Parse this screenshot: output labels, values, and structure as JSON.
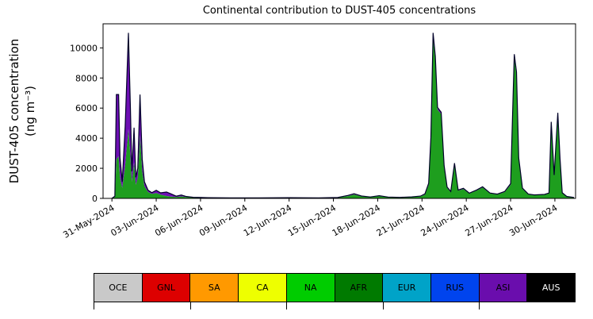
{
  "chart_data": {
    "type": "area",
    "stacked": true,
    "title": "Continental contribution to DUST-405 concentrations",
    "ylabel": [
      "DUST-405 concentration",
      "(ng m⁻³)"
    ],
    "xlim_days": [
      -0.6,
      31.4
    ],
    "ylim": [
      0,
      11600
    ],
    "y_ticks": [
      0,
      2000,
      4000,
      6000,
      8000,
      10000
    ],
    "x_ticks": [
      {
        "day": 0,
        "label": "31-May-2024"
      },
      {
        "day": 3,
        "label": "03-Jun-2024"
      },
      {
        "day": 6,
        "label": "06-Jun-2024"
      },
      {
        "day": 9,
        "label": "09-Jun-2024"
      },
      {
        "day": 12,
        "label": "12-Jun-2024"
      },
      {
        "day": 15,
        "label": "15-Jun-2024"
      },
      {
        "day": 18,
        "label": "18-Jun-2024"
      },
      {
        "day": 21,
        "label": "21-Jun-2024"
      },
      {
        "day": 24,
        "label": "24-Jun-2024"
      },
      {
        "day": 27,
        "label": "27-Jun-2024"
      },
      {
        "day": 30,
        "label": "30-Jun-2024"
      }
    ],
    "series": [
      {
        "name": "NA",
        "color": "#1e9e1e"
      },
      {
        "name": "ASI",
        "color": "#6e0fb4"
      }
    ],
    "outline_color": "#000028",
    "points": [
      [
        0,
        5,
        0
      ],
      [
        0.2,
        100,
        50
      ],
      [
        0.3,
        2600,
        4300
      ],
      [
        0.45,
        2800,
        4100
      ],
      [
        0.55,
        1400,
        1300
      ],
      [
        0.7,
        700,
        400
      ],
      [
        0.9,
        2200,
        2600
      ],
      [
        1.12,
        4600,
        6400
      ],
      [
        1.25,
        2800,
        3200
      ],
      [
        1.35,
        1100,
        700
      ],
      [
        1.5,
        2400,
        2300
      ],
      [
        1.62,
        900,
        500
      ],
      [
        1.75,
        1400,
        600
      ],
      [
        1.9,
        4200,
        2700
      ],
      [
        2.05,
        1800,
        800
      ],
      [
        2.2,
        800,
        300
      ],
      [
        2.45,
        420,
        120
      ],
      [
        2.7,
        300,
        80
      ],
      [
        3.0,
        360,
        180
      ],
      [
        3.3,
        250,
        120
      ],
      [
        3.7,
        160,
        260
      ],
      [
        4.0,
        120,
        180
      ],
      [
        4.35,
        90,
        60
      ],
      [
        4.7,
        130,
        90
      ],
      [
        5.0,
        90,
        40
      ],
      [
        5.5,
        60,
        15
      ],
      [
        6.5,
        40,
        5
      ],
      [
        8,
        35,
        0
      ],
      [
        10,
        30,
        0
      ],
      [
        12,
        40,
        5
      ],
      [
        14,
        30,
        0
      ],
      [
        15.3,
        55,
        5
      ],
      [
        16.0,
        160,
        40
      ],
      [
        16.4,
        260,
        50
      ],
      [
        16.9,
        130,
        30
      ],
      [
        17.5,
        80,
        15
      ],
      [
        18.1,
        150,
        30
      ],
      [
        18.7,
        80,
        10
      ],
      [
        19.5,
        60,
        10
      ],
      [
        20.3,
        85,
        15
      ],
      [
        20.9,
        130,
        25
      ],
      [
        21.2,
        250,
        50
      ],
      [
        21.45,
        900,
        100
      ],
      [
        21.6,
        3800,
        250
      ],
      [
        21.75,
        10700,
        300
      ],
      [
        21.9,
        9200,
        250
      ],
      [
        22.05,
        5900,
        150
      ],
      [
        22.3,
        5600,
        120
      ],
      [
        22.5,
        2100,
        90
      ],
      [
        22.7,
        700,
        50
      ],
      [
        22.95,
        420,
        40
      ],
      [
        23.2,
        2250,
        90
      ],
      [
        23.45,
        520,
        40
      ],
      [
        23.8,
        620,
        50
      ],
      [
        24.2,
        320,
        30
      ],
      [
        24.7,
        520,
        40
      ],
      [
        25.1,
        720,
        50
      ],
      [
        25.6,
        330,
        30
      ],
      [
        26.1,
        260,
        25
      ],
      [
        26.6,
        420,
        40
      ],
      [
        27.0,
        900,
        80
      ],
      [
        27.25,
        9300,
        280
      ],
      [
        27.4,
        8200,
        200
      ],
      [
        27.55,
        2600,
        90
      ],
      [
        27.8,
        640,
        40
      ],
      [
        28.2,
        260,
        25
      ],
      [
        28.6,
        210,
        20
      ],
      [
        29.3,
        240,
        25
      ],
      [
        29.6,
        330,
        30
      ],
      [
        29.75,
        5000,
        90
      ],
      [
        29.95,
        1500,
        50
      ],
      [
        30.2,
        5600,
        90
      ],
      [
        30.35,
        2600,
        50
      ],
      [
        30.5,
        350,
        25
      ],
      [
        30.8,
        120,
        10
      ],
      [
        31.3,
        60,
        5
      ]
    ]
  },
  "legend": {
    "items": [
      {
        "label": "OCE",
        "color": "#c9c9c9",
        "text_color": "#000000"
      },
      {
        "label": "GNL",
        "color": "#dd0000",
        "text_color": "#000000"
      },
      {
        "label": "SA",
        "color": "#ff9900",
        "text_color": "#000000"
      },
      {
        "label": "CA",
        "color": "#eeff00",
        "text_color": "#000000"
      },
      {
        "label": "NA",
        "color": "#00cc00",
        "text_color": "#000000"
      },
      {
        "label": "AFR",
        "color": "#007a00",
        "text_color": "#000000"
      },
      {
        "label": "EUR",
        "color": "#00a3c8",
        "text_color": "#000000"
      },
      {
        "label": "RUS",
        "color": "#0044ee",
        "text_color": "#000000"
      },
      {
        "label": "ASI",
        "color": "#6a0dad",
        "text_color": "#000000"
      },
      {
        "label": "AUS",
        "color": "#000000",
        "text_color": "#ffffff"
      }
    ]
  }
}
